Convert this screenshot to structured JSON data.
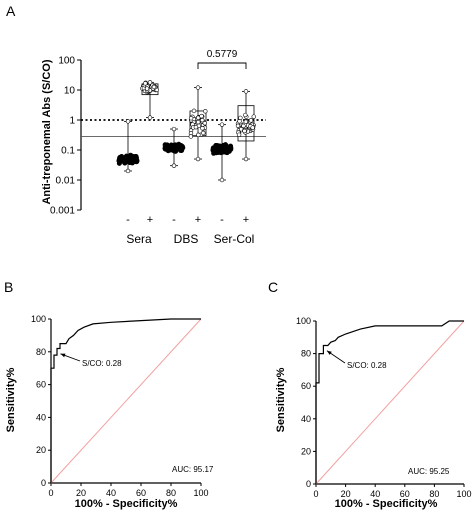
{
  "chart_data": [
    {
      "panel": "A",
      "type": "scatter",
      "ylabel": "Anti-treponemal Abs (S/CO)",
      "yscale": "log",
      "ylim": [
        0.001,
        100
      ],
      "yticks": [
        "100",
        "10",
        "1",
        "0.1",
        "0.01",
        "0.001"
      ],
      "yticks_values": [
        100,
        10,
        1,
        0.1,
        0.01,
        0.001
      ],
      "cutoff_dotted": 1,
      "cutoff_solid": 0.28,
      "groups": [
        {
          "label": "Sera",
          "subgroups": [
            {
              "sign": "-",
              "median": 0.05,
              "q1": 0.04,
              "q3": 0.06,
              "min": 0.02,
              "max": 0.9,
              "n": 90,
              "spread": 0.18,
              "minor_hi": 0.9
            },
            {
              "sign": "+",
              "median": 12,
              "q1": 7,
              "q3": 16,
              "min": 1.2,
              "max": 18,
              "n": 40,
              "spread": 0.2,
              "minor_hi": 18
            }
          ]
        },
        {
          "label": "DBS",
          "subgroups": [
            {
              "sign": "-",
              "median": 0.12,
              "q1": 0.1,
              "q3": 0.15,
              "min": 0.03,
              "max": 0.5,
              "n": 90,
              "spread": 0.16,
              "minor_hi": 0.5
            },
            {
              "sign": "+",
              "median": 0.8,
              "q1": 0.3,
              "q3": 2,
              "min": 0.05,
              "max": 12,
              "n": 40,
              "spread": 0.6,
              "minor_hi": 12
            }
          ]
        },
        {
          "label": "Ser-Col",
          "subgroups": [
            {
              "sign": "-",
              "median": 0.11,
              "q1": 0.08,
              "q3": 0.14,
              "min": 0.01,
              "max": 0.7,
              "n": 90,
              "spread": 0.18,
              "minor_hi": 0.7
            },
            {
              "sign": "+",
              "median": 0.6,
              "q1": 0.2,
              "q3": 3,
              "min": 0.05,
              "max": 9,
              "n": 40,
              "spread": 0.6,
              "minor_hi": 9
            }
          ]
        }
      ],
      "comparison": {
        "label": "0.5779",
        "between": [
          "DBS +",
          "Ser-Col +"
        ]
      }
    },
    {
      "panel": "B",
      "type": "line",
      "xlabel": "100% - Specificity%",
      "ylabel": "Sensitivity%",
      "xlim": [
        0,
        100
      ],
      "ylim": [
        0,
        100
      ],
      "xticks": [
        0,
        20,
        40,
        60,
        80,
        100
      ],
      "yticks": [
        0,
        20,
        40,
        60,
        80,
        100
      ],
      "roc": {
        "x": [
          0,
          0,
          2,
          2,
          4,
          4,
          6,
          6,
          10,
          12,
          15,
          18,
          22,
          28,
          40,
          60,
          80,
          100
        ],
        "y": [
          0,
          70,
          70,
          78,
          78,
          82,
          82,
          85,
          85,
          88,
          90,
          93,
          95,
          97,
          98,
          99,
          100,
          100
        ]
      },
      "reference_line": {
        "x": [
          0,
          100
        ],
        "y": [
          0,
          100
        ]
      },
      "annotation": {
        "text": "S/CO: 0.28",
        "point_x": 3,
        "point_y": 80
      },
      "auc": "AUC: 95.17"
    },
    {
      "panel": "C",
      "type": "line",
      "xlabel": "100% - Specificity%",
      "ylabel": "Sensitivity%",
      "xlim": [
        0,
        100
      ],
      "ylim": [
        0,
        100
      ],
      "xticks": [
        0,
        20,
        40,
        60,
        80,
        100
      ],
      "yticks": [
        0,
        20,
        40,
        60,
        80,
        100
      ],
      "roc": {
        "x": [
          0,
          0,
          2,
          2,
          5,
          5,
          8,
          10,
          13,
          15,
          20,
          30,
          40,
          60,
          85,
          90,
          100
        ],
        "y": [
          0,
          62,
          62,
          80,
          80,
          85,
          85,
          87,
          88,
          90,
          92,
          95,
          97,
          97,
          97,
          100,
          100
        ]
      },
      "reference_line": {
        "x": [
          0,
          100
        ],
        "y": [
          0,
          100
        ]
      },
      "annotation": {
        "text": "S/CO: 0.28",
        "point_x": 4,
        "point_y": 83
      },
      "auc": "AUC: 95.25"
    }
  ]
}
